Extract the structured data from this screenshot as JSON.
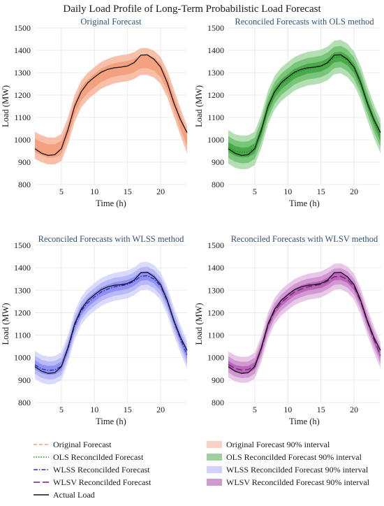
{
  "title": "Daily Load Profile of Long-Term Probabilistic Load Forecast",
  "chart_data": [
    {
      "type": "line",
      "title": "Original Forecast",
      "xlabel": "Time (h)",
      "ylabel": "Load (MW)",
      "xlim": [
        1,
        24
      ],
      "ylim": [
        800,
        1500
      ],
      "xticks": [
        5,
        10,
        15,
        20
      ],
      "yticks": [
        800,
        900,
        1000,
        1100,
        1200,
        1300,
        1400,
        1500
      ],
      "grid": true,
      "x": [
        1,
        2,
        3,
        4,
        5,
        6,
        7,
        8,
        9,
        10,
        11,
        12,
        13,
        14,
        15,
        16,
        17,
        18,
        19,
        20,
        21,
        22,
        23,
        24
      ],
      "series": [
        {
          "name": "Original Forecast",
          "style": "dashed",
          "color": "#f5a27a",
          "values": [
            975,
            960,
            950,
            950,
            965,
            1040,
            1140,
            1205,
            1240,
            1265,
            1288,
            1302,
            1312,
            1318,
            1322,
            1332,
            1350,
            1350,
            1338,
            1310,
            1250,
            1165,
            1080,
            1000
          ]
        },
        {
          "name": "Actual Load",
          "style": "solid",
          "color": "#111111",
          "values": [
            960,
            940,
            930,
            933,
            960,
            1045,
            1150,
            1215,
            1255,
            1280,
            1302,
            1315,
            1322,
            1325,
            1330,
            1345,
            1378,
            1380,
            1360,
            1325,
            1255,
            1165,
            1090,
            1032
          ]
        }
      ],
      "bands": [
        {
          "name": "Original Forecast 90% interval",
          "color": "#f7b59a",
          "halfwidth": 60
        },
        {
          "name": "inner",
          "color": "#f39b78",
          "halfwidth": 30
        }
      ]
    },
    {
      "type": "line",
      "title": "Reconciled Forecasts with OLS method",
      "xlabel": "Time (h)",
      "ylabel": "Load (MW)",
      "xlim": [
        1,
        24
      ],
      "ylim": [
        800,
        1500
      ],
      "xticks": [
        5,
        10,
        15,
        20
      ],
      "yticks": [
        800,
        900,
        1000,
        1100,
        1200,
        1300,
        1400,
        1500
      ],
      "grid": true,
      "x": [
        1,
        2,
        3,
        4,
        5,
        6,
        7,
        8,
        9,
        10,
        11,
        12,
        13,
        14,
        15,
        16,
        17,
        18,
        19,
        20,
        21,
        22,
        23,
        24
      ],
      "series": [
        {
          "name": "OLS Reconcilded Forecast",
          "style": "dotted",
          "color": "#1f8a1f",
          "values": [
            968,
            950,
            943,
            945,
            962,
            1040,
            1145,
            1210,
            1248,
            1272,
            1295,
            1308,
            1318,
            1322,
            1328,
            1342,
            1368,
            1372,
            1355,
            1320,
            1255,
            1165,
            1085,
            1015
          ]
        },
        {
          "name": "Actual Load",
          "style": "solid",
          "color": "#111111",
          "values": [
            960,
            940,
            930,
            933,
            960,
            1045,
            1150,
            1215,
            1255,
            1280,
            1302,
            1315,
            1322,
            1325,
            1330,
            1345,
            1378,
            1380,
            1360,
            1325,
            1255,
            1165,
            1090,
            1032
          ]
        }
      ],
      "bands": [
        {
          "name": "OLS Reconcilded Forecast 90% interval",
          "color": "#a6d9a6",
          "halfwidth": 75
        },
        {
          "name": "mid",
          "color": "#6fc16f",
          "halfwidth": 48
        },
        {
          "name": "inner",
          "color": "#3fa43f",
          "halfwidth": 22
        }
      ]
    },
    {
      "type": "line",
      "title": "Reconciled Forecasts with WLSS method",
      "xlabel": "Time (h)",
      "ylabel": "Load (MW)",
      "xlim": [
        1,
        24
      ],
      "ylim": [
        800,
        1500
      ],
      "xticks": [
        5,
        10,
        15,
        20
      ],
      "yticks": [
        800,
        900,
        1000,
        1100,
        1200,
        1300,
        1400,
        1500
      ],
      "grid": true,
      "x": [
        1,
        2,
        3,
        4,
        5,
        6,
        7,
        8,
        9,
        10,
        11,
        12,
        13,
        14,
        15,
        16,
        17,
        18,
        19,
        20,
        21,
        22,
        23,
        24
      ],
      "series": [
        {
          "name": "WLSS Reconcilded Forecast",
          "style": "dashdot",
          "color": "#2a2ad0",
          "values": [
            968,
            950,
            943,
            945,
            962,
            1040,
            1143,
            1208,
            1245,
            1270,
            1292,
            1305,
            1315,
            1320,
            1326,
            1340,
            1362,
            1365,
            1350,
            1318,
            1252,
            1163,
            1083,
            1012
          ]
        },
        {
          "name": "Actual Load",
          "style": "solid",
          "color": "#111111",
          "values": [
            960,
            940,
            930,
            933,
            960,
            1045,
            1150,
            1215,
            1255,
            1280,
            1302,
            1315,
            1322,
            1325,
            1330,
            1345,
            1378,
            1380,
            1360,
            1325,
            1255,
            1165,
            1090,
            1032
          ]
        }
      ],
      "bands": [
        {
          "name": "WLSS Reconcilded Forecast 90% interval",
          "color": "#d4d4fb",
          "halfwidth": 62
        },
        {
          "name": "mid",
          "color": "#b3b3f6",
          "halfwidth": 40
        },
        {
          "name": "inner",
          "color": "#8a8af0",
          "halfwidth": 20
        }
      ]
    },
    {
      "type": "line",
      "title": "Reconciled Forecasts with WLSV method",
      "xlabel": "Time (h)",
      "ylabel": "Load (MW)",
      "xlim": [
        1,
        24
      ],
      "ylim": [
        800,
        1500
      ],
      "xticks": [
        5,
        10,
        15,
        20
      ],
      "yticks": [
        800,
        900,
        1000,
        1100,
        1200,
        1300,
        1400,
        1500
      ],
      "grid": true,
      "x": [
        1,
        2,
        3,
        4,
        5,
        6,
        7,
        8,
        9,
        10,
        11,
        12,
        13,
        14,
        15,
        16,
        17,
        18,
        19,
        20,
        21,
        22,
        23,
        24
      ],
      "series": [
        {
          "name": "WLSV Reconcilded Forecast",
          "style": "longdash",
          "color": "#7a1f7a",
          "values": [
            970,
            952,
            945,
            947,
            964,
            1040,
            1143,
            1208,
            1245,
            1270,
            1292,
            1305,
            1315,
            1320,
            1326,
            1340,
            1360,
            1362,
            1348,
            1316,
            1250,
            1162,
            1082,
            1010
          ]
        },
        {
          "name": "Actual Load",
          "style": "solid",
          "color": "#111111",
          "values": [
            960,
            940,
            930,
            933,
            960,
            1045,
            1150,
            1215,
            1255,
            1280,
            1302,
            1315,
            1322,
            1325,
            1330,
            1345,
            1378,
            1380,
            1360,
            1325,
            1255,
            1165,
            1090,
            1032
          ]
        }
      ],
      "bands": [
        {
          "name": "WLSV Reconcilded Forecast 90% interval",
          "color": "#e3bfe3",
          "halfwidth": 58
        },
        {
          "name": "mid",
          "color": "#cf8fcf",
          "halfwidth": 36
        },
        {
          "name": "inner",
          "color": "#b45fb4",
          "halfwidth": 16
        }
      ]
    }
  ],
  "legend": {
    "lines": [
      {
        "label": "Original Forecast",
        "style": "dashed",
        "color": "#f5a27a"
      },
      {
        "label": "OLS Reconcilded Forecast",
        "style": "dotted",
        "color": "#1f8a1f"
      },
      {
        "label": "WLSS Reconcilded Forecast",
        "style": "dashdot",
        "color": "#2a2ad0"
      },
      {
        "label": "WLSV Reconcilded Forecast",
        "style": "longdash",
        "color": "#7a1f7a"
      },
      {
        "label": "Actual Load",
        "style": "solid",
        "color": "#111111"
      }
    ],
    "bands": [
      {
        "label": "Original Forecast 90% interval",
        "color": "#f8d3c4"
      },
      {
        "label": "OLS Reconcilded Forecast 90% interval",
        "color": "#9fd09f"
      },
      {
        "label": "WLSS Reconcilded Forecast 90% interval",
        "color": "#d0d0fa"
      },
      {
        "label": "WLSV Reconcilded Forecast 90% interval",
        "color": "#cf9bcf"
      }
    ]
  }
}
